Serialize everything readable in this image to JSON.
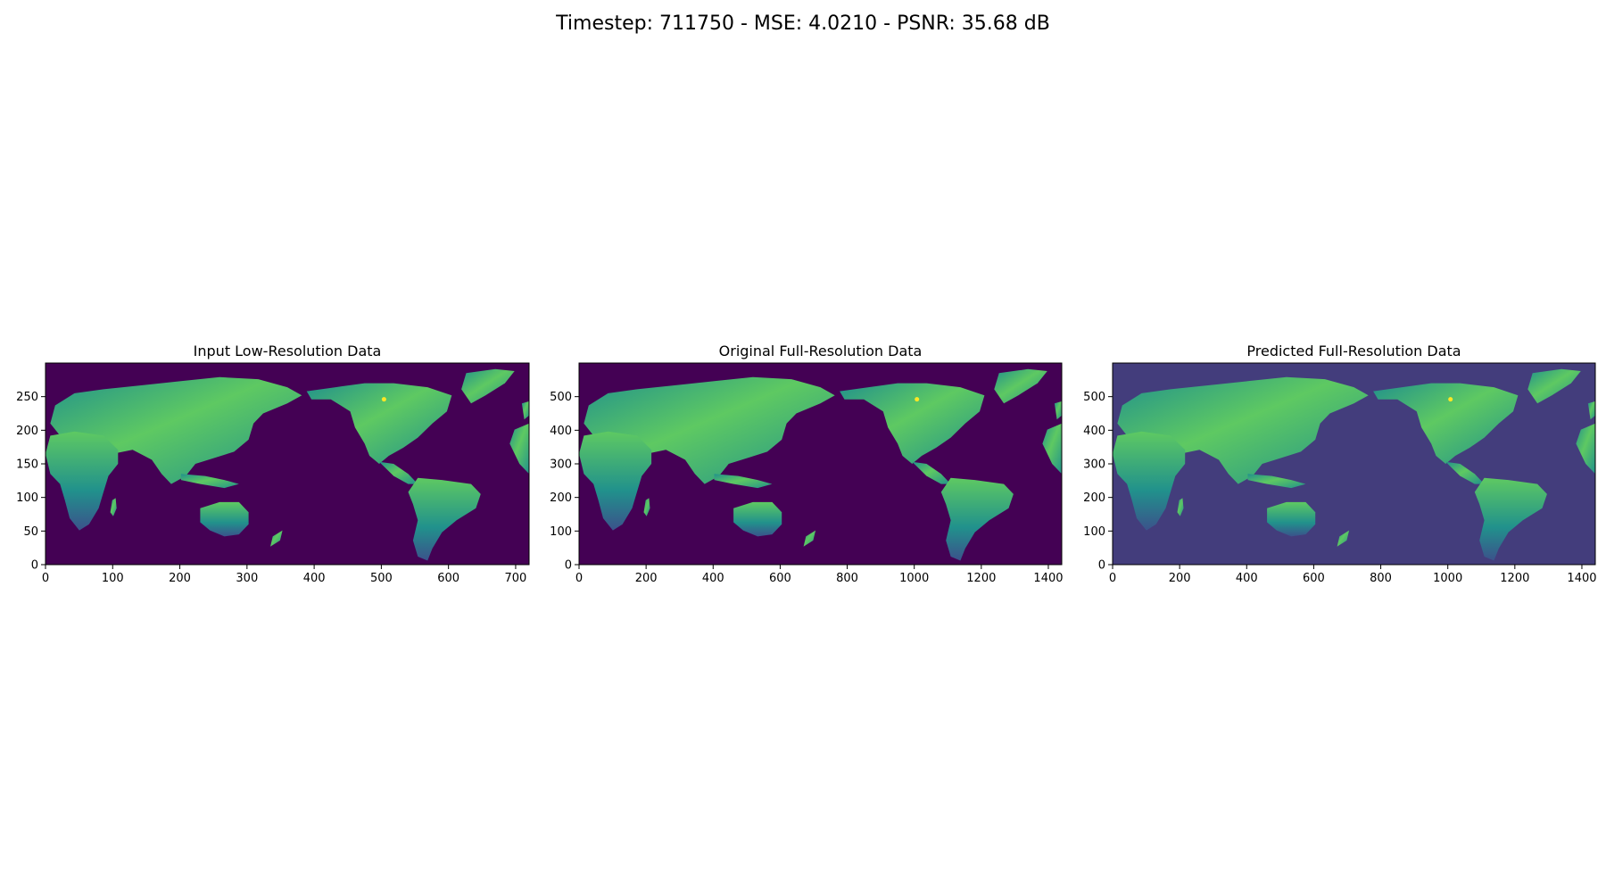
{
  "figure": {
    "title": "Timestep: 711750 - MSE: 4.0210 - PSNR: 35.68 dB"
  },
  "colors": {
    "ocean_dark": "#440154",
    "ocean_pred": "#433d7c",
    "land_low": "#3b528b",
    "land_mid": "#21918c",
    "land_high": "#5ec962",
    "land_peak": "#fde725"
  },
  "chart_data": [
    {
      "type": "heatmap",
      "title": "Input Low-Resolution Data",
      "xlabel": "",
      "ylabel": "",
      "xlim": [
        0,
        720
      ],
      "ylim": [
        0,
        300
      ],
      "xticks": [
        0,
        100,
        200,
        300,
        400,
        500,
        600,
        700
      ],
      "yticks": [
        0,
        50,
        100,
        150,
        200,
        250
      ],
      "grid": false,
      "ocean_color": "#440154"
    },
    {
      "type": "heatmap",
      "title": "Original Full-Resolution Data",
      "xlabel": "",
      "ylabel": "",
      "xlim": [
        0,
        1440
      ],
      "ylim": [
        0,
        600
      ],
      "xticks": [
        0,
        200,
        400,
        600,
        800,
        1000,
        1200,
        1400
      ],
      "yticks": [
        0,
        100,
        200,
        300,
        400,
        500
      ],
      "grid": false,
      "ocean_color": "#440154"
    },
    {
      "type": "heatmap",
      "title": "Predicted Full-Resolution Data",
      "xlabel": "",
      "ylabel": "",
      "xlim": [
        0,
        1440
      ],
      "ylim": [
        0,
        600
      ],
      "xticks": [
        0,
        200,
        400,
        600,
        800,
        1000,
        1200,
        1400
      ],
      "yticks": [
        0,
        100,
        200,
        300,
        400,
        500
      ],
      "grid": false,
      "ocean_color": "#433d7c"
    }
  ]
}
